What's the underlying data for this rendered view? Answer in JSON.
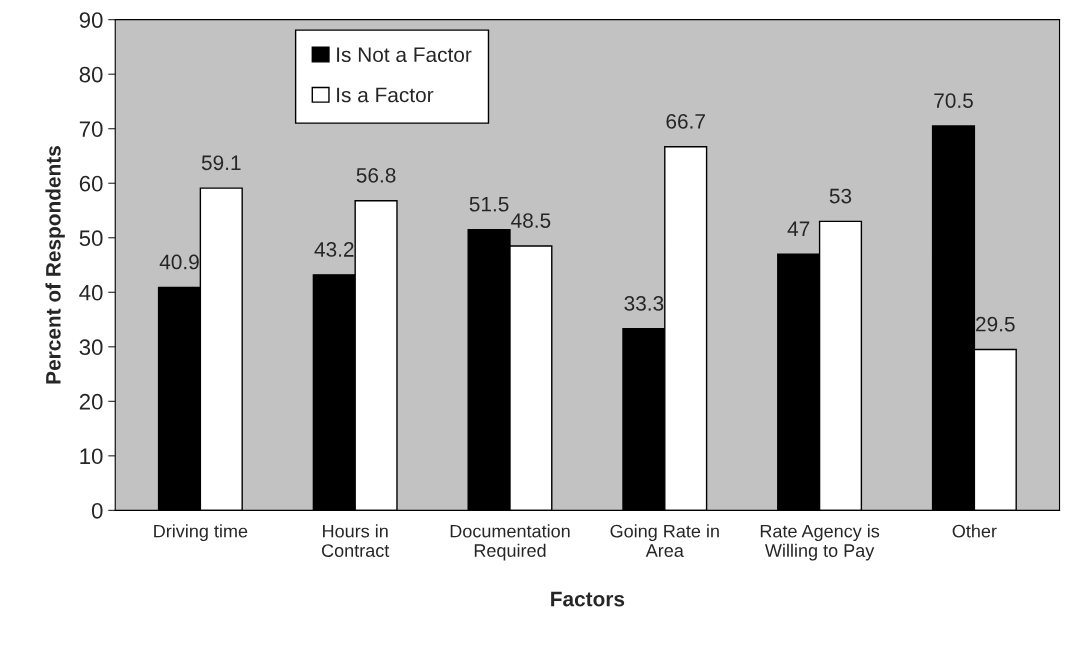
{
  "chart_data": {
    "type": "bar",
    "categories": [
      "Driving time",
      "Hours in\nContract",
      "Documentation\nRequired",
      "Going Rate in\nArea",
      "Rate Agency is\nWilling to Pay",
      "Other"
    ],
    "series": [
      {
        "name": "Is Not a Factor",
        "color": "#000000",
        "values": [
          40.9,
          43.2,
          51.5,
          33.3,
          47,
          70.5
        ]
      },
      {
        "name": "Is a Factor",
        "color": "#ffffff",
        "values": [
          59.1,
          56.8,
          48.5,
          66.7,
          53,
          29.5
        ]
      }
    ],
    "xlabel": "Factors",
    "ylabel": "Percent of Respondents",
    "ylim": [
      0,
      90
    ],
    "yticks": [
      0,
      10,
      20,
      30,
      40,
      50,
      60,
      70,
      80,
      90
    ],
    "data_labels": true,
    "legend": "top left",
    "grid": false
  }
}
